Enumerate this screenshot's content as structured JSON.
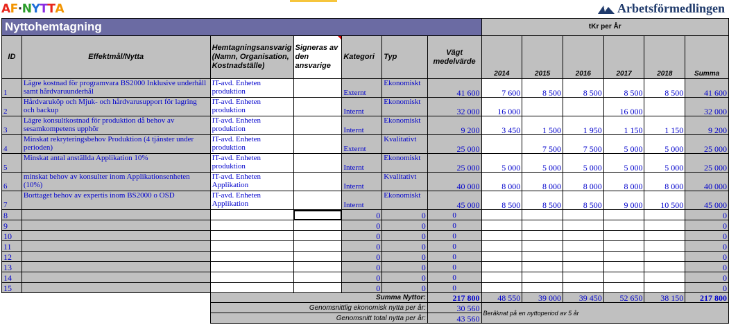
{
  "logo_left": {
    "letters": [
      "A",
      "F",
      "·",
      "N",
      "Y",
      "T",
      "T",
      "A"
    ],
    "colors": [
      "#e8261c",
      "#f29400",
      "#222222",
      "#2a9d2a",
      "#1e6fd9",
      "#8a2be2",
      "#e8261c",
      "#f29400"
    ]
  },
  "logo_right": {
    "text": "Arbetsförmedlingen"
  },
  "sheet": {
    "title": "Nyttohemtagning",
    "tkr_label": "tKr per År",
    "headers": {
      "id": "ID",
      "effekt": "Effektmål/Nytta",
      "hemtagning": "Hemtagningsansvarig (Namn, Organisation, Kostnadställe)",
      "signeras": "Signeras av den ansvarige",
      "kategori": "Kategori",
      "typ": "Typ",
      "vagt": "Vägt medelvärde",
      "y2014": "2014",
      "y2015": "2015",
      "y2016": "2016",
      "y2017": "2017",
      "y2018": "2018",
      "summa": "Summa"
    },
    "rows": [
      {
        "id": "1",
        "effekt": "Lägre kostnad för programvara BS2000 Inklusive underhåll samt hårdvaruunderhål",
        "ansvarig": "IT-avd. Enheten produktion",
        "signeras": "",
        "kategori": "Externt",
        "typ": "Ekonomiskt",
        "vagt": "41 600",
        "y2014": "7 600",
        "y2015": "8 500",
        "y2016": "8 500",
        "y2017": "8 500",
        "y2018": "8 500",
        "summa": "41 600"
      },
      {
        "id": "2",
        "effekt": "Hårdvaruköp och Mjuk- och hårdvarusupport för lagring och backup",
        "ansvarig": "IT-avd. Enheten produktion",
        "signeras": "",
        "kategori": "Internt",
        "typ": "Ekonomiskt",
        "vagt": "32 000",
        "y2014": "16 000",
        "y2015": "",
        "y2016": "",
        "y2017": "16 000",
        "y2018": "",
        "summa": "32 000"
      },
      {
        "id": "3",
        "effekt": "Lägre konsultkostnad för produktion då behov av sesamkompetens upphör",
        "ansvarig": "IT-avd. Enheten produktion",
        "signeras": "",
        "kategori": "Internt",
        "typ": "Ekonomiskt",
        "vagt": "9 200",
        "y2014": "3 450",
        "y2015": "1 500",
        "y2016": "1 950",
        "y2017": "1 150",
        "y2018": "1 150",
        "summa": "9 200"
      },
      {
        "id": "4",
        "effekt": "Minskat rekryteringsbehov Produktion (4 tjänster under perioden)",
        "ansvarig": "IT-avd. Enheten produktion",
        "signeras": "",
        "kategori": "Externt",
        "typ": "Kvalitativt",
        "vagt": "25 000",
        "y2014": "",
        "y2015": "7 500",
        "y2016": "7 500",
        "y2017": "5 000",
        "y2018": "5 000",
        "summa": "25 000"
      },
      {
        "id": "5",
        "effekt": "Minskat antal anställda Applikation 10%",
        "ansvarig": "IT-avd. Enheten produktion",
        "signeras": "",
        "kategori": "Internt",
        "typ": "Ekonomiskt",
        "vagt": "25 000",
        "y2014": "5 000",
        "y2015": "5 000",
        "y2016": "5 000",
        "y2017": "5 000",
        "y2018": "5 000",
        "summa": "25 000"
      },
      {
        "id": "6",
        "effekt": "minskat behov av konsulter inom Applikationsenheten (10%)",
        "ansvarig": "IT-avd. Enheten Applikation",
        "signeras": "",
        "kategori": "Internt",
        "typ": "Kvalitativt",
        "vagt": "40 000",
        "y2014": "8 000",
        "y2015": "8 000",
        "y2016": "8 000",
        "y2017": "8 000",
        "y2018": "8 000",
        "summa": "40 000"
      },
      {
        "id": "7",
        "effekt": "Borttaget behov av expertis inom BS2000 o OSD",
        "ansvarig": "IT-avd. Enheten Applikation",
        "signeras": "",
        "kategori": "Internt",
        "typ": "Ekonomiskt",
        "vagt": "45 000",
        "y2014": "8 500",
        "y2015": "8 500",
        "y2016": "8 500",
        "y2017": "9 000",
        "y2018": "10 500",
        "summa": "45 000"
      }
    ],
    "empty_rows": [
      {
        "id": "8",
        "kategori": "0",
        "typ": "0",
        "vagt": "0",
        "summa": "0"
      },
      {
        "id": "9",
        "kategori": "0",
        "typ": "0",
        "vagt": "0",
        "summa": "0"
      },
      {
        "id": "10",
        "kategori": "0",
        "typ": "0",
        "vagt": "0",
        "summa": "0"
      },
      {
        "id": "11",
        "kategori": "0",
        "typ": "0",
        "vagt": "0",
        "summa": "0"
      },
      {
        "id": "12",
        "kategori": "0",
        "typ": "0",
        "vagt": "0",
        "summa": "0"
      },
      {
        "id": "13",
        "kategori": "0",
        "typ": "0",
        "vagt": "0",
        "summa": "0"
      },
      {
        "id": "14",
        "kategori": "0",
        "typ": "0",
        "vagt": "0",
        "summa": "0"
      },
      {
        "id": "15",
        "kategori": "0",
        "typ": "0",
        "vagt": "0",
        "summa": "0"
      }
    ],
    "totals": {
      "label": "Summa Nyttor:",
      "vagt": "217 800",
      "y2014": "48 550",
      "y2015": "39 000",
      "y2016": "39 450",
      "y2017": "52 650",
      "y2018": "38 150",
      "summa": "217 800"
    },
    "avg_econ": {
      "label": "Genomsnittlig ekonomisk nytta per år:",
      "value": "30 560"
    },
    "avg_total": {
      "label": "Genomsnitt total nytta per år:",
      "value": "43 560"
    },
    "note": "Beräknat på en nyttoperiod av 5 år"
  }
}
